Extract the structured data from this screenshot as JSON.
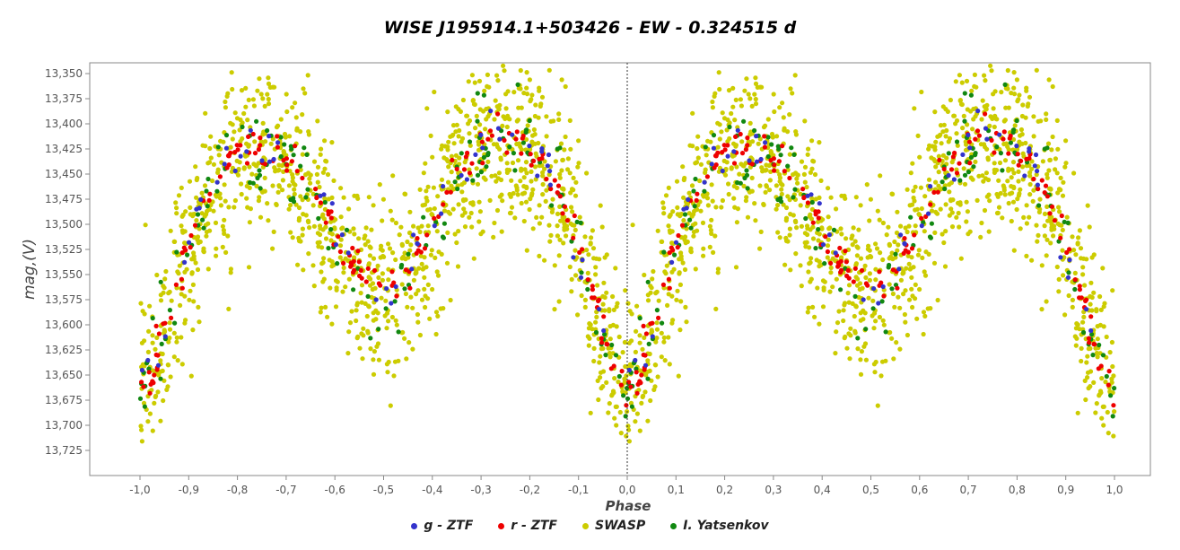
{
  "chart_data": {
    "type": "scatter",
    "title": "WISE J195914.1+503426 - EW - 0.324515 d",
    "xlabel": "Phase",
    "ylabel": "mag,(V)",
    "xlim": [
      -1.05,
      1.05
    ],
    "ylim": [
      13.7475,
      13.3425
    ],
    "y_inverted": true,
    "grid": false,
    "legend_position": "bottom-center",
    "x_ticks": [
      "-1,0",
      "-0,9",
      "-0,8",
      "-0,7",
      "-0,6",
      "-0,5",
      "-0,4",
      "-0,3",
      "-0,2",
      "-0,1",
      "0,0",
      "0,1",
      "0,2",
      "0,3",
      "0,4",
      "0,5",
      "0,6",
      "0,7",
      "0,8",
      "0,9",
      "1,0"
    ],
    "y_ticks": [
      "13,350",
      "13,375",
      "13,400",
      "13,425",
      "13,450",
      "13,475",
      "13,500",
      "13,525",
      "13,550",
      "13,575",
      "13,600",
      "13,625",
      "13,650",
      "13,675",
      "13,700",
      "13,725"
    ],
    "reference_line_x": 0.0,
    "light_curve_model": {
      "mean_mag": 13.545,
      "primary_min_phase": 0.0,
      "primary_min_mag": 13.68,
      "secondary_min_phase": 0.5,
      "secondary_min_mag": 13.59,
      "max1_phase": 0.25,
      "max1_mag": 13.42,
      "max2_phase": 0.75,
      "max2_mag": 13.41
    },
    "series": [
      {
        "name": "g - ZTF",
        "color": "#3333cc",
        "point_count_per_cycle": 60,
        "scatter_mag": 0.012
      },
      {
        "name": "r - ZTF",
        "color": "#ee0000",
        "point_count_per_cycle": 170,
        "scatter_mag": 0.01
      },
      {
        "name": "SWASP",
        "color": "#cccc00",
        "point_count_per_cycle": 1300,
        "scatter_mag": 0.045
      },
      {
        "name": "I. Yatsenkov",
        "color": "#118811",
        "point_count_per_cycle": 140,
        "scatter_mag": 0.022
      }
    ]
  }
}
